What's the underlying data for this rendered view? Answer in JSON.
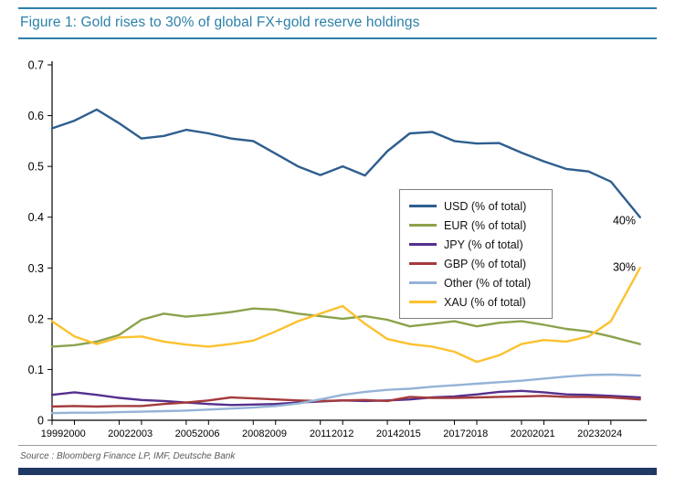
{
  "figure": {
    "source": "Source : Bloomberg Finance LP, IMF, Deutsche Bank",
    "accent_color": "#2c80a8",
    "bottom_bar_color": "#203864"
  },
  "chart_data": {
    "type": "line",
    "title": "Figure 1: Gold rises to 30% of global FX+gold reserve holdings",
    "xlabel": "",
    "ylabel": "",
    "grid": false,
    "legend_position": "inside-right",
    "xlim": [
      1999,
      2025.6
    ],
    "ylim": [
      0,
      0.7
    ],
    "y_ticks": [
      0,
      0.1,
      0.2,
      0.3,
      0.4,
      0.5,
      0.6,
      0.7
    ],
    "y_tick_labels": [
      "0",
      "0.1",
      "0.2",
      "0.3",
      "0.4",
      "0.5",
      "0.6",
      "0.7"
    ],
    "x_ticks": [
      1999,
      2000,
      2002,
      2003,
      2005,
      2006,
      2008,
      2009,
      2011,
      2012,
      2014,
      2015,
      2017,
      2018,
      2020,
      2021,
      2023,
      2024
    ],
    "x_tick_labels": [
      "1999",
      "2000",
      "2002",
      "2003",
      "2005",
      "2006",
      "2008",
      "2009",
      "2011",
      "2012",
      "2014",
      "2015",
      "2017",
      "2018",
      "2020",
      "2021",
      "2023",
      "2024"
    ],
    "x": [
      1999,
      2000,
      2001,
      2002,
      2003,
      2004,
      2005,
      2006,
      2007,
      2008,
      2009,
      2010,
      2011,
      2012,
      2013,
      2014,
      2015,
      2016,
      2017,
      2018,
      2019,
      2020,
      2021,
      2022,
      2023,
      2024,
      2025.3
    ],
    "series": [
      {
        "id": "usd",
        "name": "USD (% of total)",
        "color": "#2e5e8e",
        "values": [
          0.575,
          0.59,
          0.612,
          0.585,
          0.555,
          0.56,
          0.572,
          0.565,
          0.555,
          0.55,
          0.525,
          0.5,
          0.483,
          0.5,
          0.482,
          0.53,
          0.565,
          0.568,
          0.55,
          0.545,
          0.546,
          0.527,
          0.51,
          0.495,
          0.49,
          0.47,
          0.4
        ]
      },
      {
        "id": "eur",
        "name": "EUR (% of total)",
        "color": "#8ca24c",
        "values": [
          0.145,
          0.148,
          0.155,
          0.168,
          0.198,
          0.21,
          0.204,
          0.208,
          0.213,
          0.22,
          0.218,
          0.21,
          0.205,
          0.2,
          0.205,
          0.198,
          0.185,
          0.19,
          0.195,
          0.185,
          0.192,
          0.195,
          0.188,
          0.18,
          0.175,
          0.165,
          0.15
        ]
      },
      {
        "id": "jpy",
        "name": "JPY (% of total)",
        "color": "#55308e",
        "values": [
          0.05,
          0.055,
          0.05,
          0.044,
          0.04,
          0.038,
          0.035,
          0.032,
          0.03,
          0.031,
          0.032,
          0.035,
          0.037,
          0.039,
          0.038,
          0.039,
          0.041,
          0.045,
          0.047,
          0.051,
          0.056,
          0.058,
          0.055,
          0.051,
          0.05,
          0.048,
          0.045
        ]
      },
      {
        "id": "gbp",
        "name": "GBP (% of total)",
        "color": "#a43a3c",
        "values": [
          0.027,
          0.028,
          0.027,
          0.028,
          0.028,
          0.032,
          0.035,
          0.039,
          0.045,
          0.043,
          0.041,
          0.039,
          0.038,
          0.039,
          0.04,
          0.038,
          0.046,
          0.044,
          0.044,
          0.045,
          0.046,
          0.047,
          0.048,
          0.046,
          0.046,
          0.045,
          0.041
        ]
      },
      {
        "id": "other",
        "name": "Other (% of total)",
        "color": "#95b3d7",
        "values": [
          0.014,
          0.015,
          0.015,
          0.016,
          0.017,
          0.018,
          0.019,
          0.021,
          0.023,
          0.025,
          0.028,
          0.033,
          0.041,
          0.05,
          0.056,
          0.06,
          0.062,
          0.066,
          0.069,
          0.072,
          0.075,
          0.078,
          0.082,
          0.086,
          0.089,
          0.09,
          0.088
        ]
      },
      {
        "id": "xau",
        "name": "XAU (% of total)",
        "color": "#fcc12e",
        "values": [
          0.195,
          0.165,
          0.15,
          0.163,
          0.165,
          0.155,
          0.149,
          0.145,
          0.15,
          0.157,
          0.175,
          0.195,
          0.21,
          0.225,
          0.19,
          0.16,
          0.15,
          0.145,
          0.135,
          0.115,
          0.128,
          0.15,
          0.158,
          0.155,
          0.165,
          0.195,
          0.3
        ]
      }
    ],
    "annotations": [
      {
        "text": "40%",
        "x": 2024.6,
        "y": 0.386
      },
      {
        "text": "30%",
        "x": 2024.6,
        "y": 0.294
      }
    ]
  }
}
